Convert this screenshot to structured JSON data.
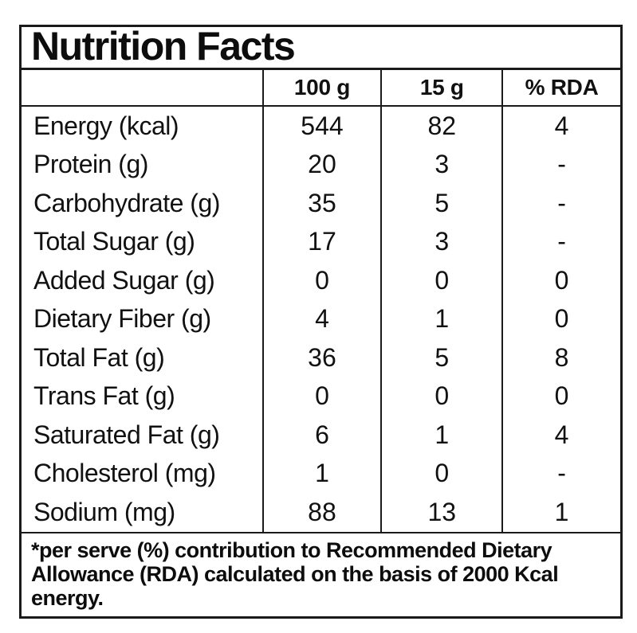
{
  "title": "Nutrition Facts",
  "table": {
    "columns": [
      "",
      "100 g",
      "15 g",
      "% RDA"
    ],
    "rows": [
      {
        "label": "Energy (kcal)",
        "per_100g": "544",
        "per_15g": "82",
        "rda_percent": "4"
      },
      {
        "label": "Protein (g)",
        "per_100g": "20",
        "per_15g": "3",
        "rda_percent": "-"
      },
      {
        "label": "Carbohydrate (g)",
        "per_100g": "35",
        "per_15g": "5",
        "rda_percent": "-"
      },
      {
        "label": "Total Sugar (g)",
        "per_100g": "17",
        "per_15g": "3",
        "rda_percent": "-"
      },
      {
        "label": "Added Sugar (g)",
        "per_100g": "0",
        "per_15g": "0",
        "rda_percent": "0"
      },
      {
        "label": "Dietary Fiber (g)",
        "per_100g": "4",
        "per_15g": "1",
        "rda_percent": "0"
      },
      {
        "label": "Total Fat (g)",
        "per_100g": "36",
        "per_15g": "5",
        "rda_percent": "8"
      },
      {
        "label": "Trans Fat (g)",
        "per_100g": "0",
        "per_15g": "0",
        "rda_percent": "0"
      },
      {
        "label": "Saturated Fat (g)",
        "per_100g": "6",
        "per_15g": "1",
        "rda_percent": "4"
      },
      {
        "label": "Cholesterol (mg)",
        "per_100g": "1",
        "per_15g": "0",
        "rda_percent": "-"
      },
      {
        "label": "Sodium (mg)",
        "per_100g": "88",
        "per_15g": "13",
        "rda_percent": "1"
      }
    ]
  },
  "footnote": "*per serve (%) contribution to Recommended Dietary Allowance (RDA) calculated on the basis of 2000 Kcal energy.",
  "colors": {
    "text": "#111111",
    "border": "#1a1a1a",
    "background": "#ffffff"
  }
}
